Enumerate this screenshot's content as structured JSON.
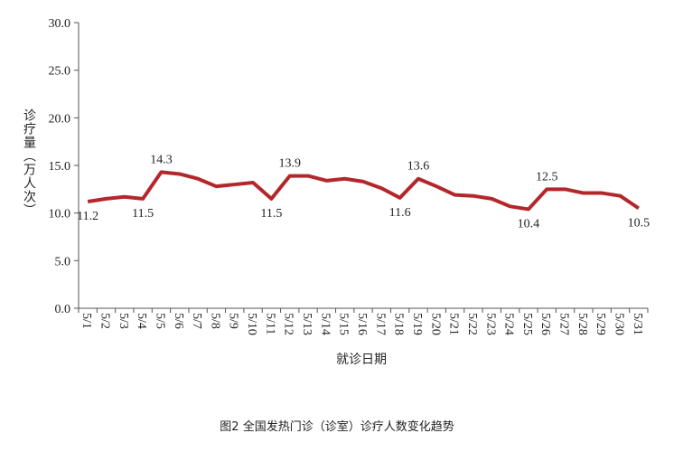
{
  "chart_data": {
    "type": "line",
    "title": "图2 全国发热门诊（诊室）诊疗人数变化趋势",
    "y_label": "诊疗量（万人次）",
    "x_label": "就诊日期",
    "categories": [
      "5/1",
      "5/2",
      "5/3",
      "5/4",
      "5/5",
      "5/6",
      "5/7",
      "5/8",
      "5/9",
      "5/10",
      "5/11",
      "5/12",
      "5/13",
      "5/14",
      "5/15",
      "5/16",
      "5/17",
      "5/18",
      "5/19",
      "5/20",
      "5/21",
      "5/22",
      "5/23",
      "5/24",
      "5/25",
      "5/26",
      "5/27",
      "5/28",
      "5/29",
      "5/30",
      "5/31"
    ],
    "values": [
      11.2,
      11.5,
      11.7,
      11.5,
      14.3,
      14.1,
      13.6,
      12.8,
      13.0,
      13.2,
      11.5,
      13.9,
      13.9,
      13.4,
      13.6,
      13.3,
      12.6,
      11.6,
      13.6,
      12.8,
      11.9,
      11.8,
      11.5,
      10.7,
      10.4,
      12.5,
      12.5,
      12.1,
      12.1,
      11.8,
      10.5
    ],
    "value_labels": [
      "11.2",
      null,
      null,
      "11.5",
      "14.3",
      null,
      null,
      null,
      null,
      null,
      "11.5",
      "13.9",
      null,
      null,
      null,
      null,
      null,
      "11.6",
      "13.6",
      null,
      null,
      null,
      null,
      null,
      "10.4",
      "12.5",
      null,
      null,
      null,
      null,
      "10.5"
    ],
    "color": "#b3262b",
    "ylim": [
      0,
      30
    ],
    "yticks": [
      {
        "value": 0,
        "label": "0.0"
      },
      {
        "value": 5,
        "label": "5.0"
      },
      {
        "value": 10,
        "label": "10.0"
      },
      {
        "value": 15,
        "label": "15.0"
      },
      {
        "value": 20,
        "label": "20.0"
      },
      {
        "value": 25,
        "label": "25.0"
      },
      {
        "value": 30,
        "label": "30.0"
      }
    ],
    "grid": false
  }
}
